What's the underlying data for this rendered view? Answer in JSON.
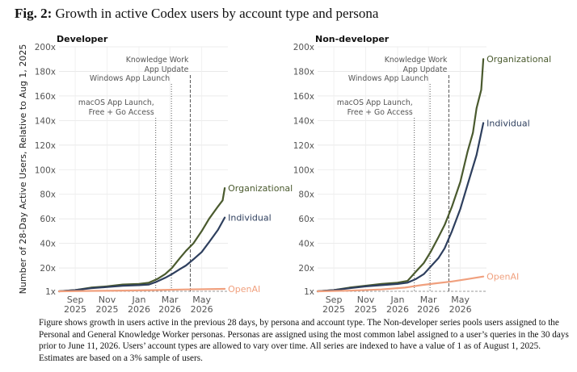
{
  "figure": {
    "label": "Fig. 2:",
    "title": "Growth in active Codex users by account type and persona",
    "caption": "Figure shows growth in users active in the previous 28 days, by persona and account type. The Non-developer series pools users assigned to the Personal and General Knowledge Worker personas. Personas are assigned using the most common label assigned to a user’s queries in the 30 days prior to June 11, 2026. Users’ account types are allowed to vary over time. All series are indexed to have a value of 1 as of August 1, 2025. Estimates are based on a 3% sample of users."
  },
  "chart_data": [
    {
      "type": "line",
      "title": "Developer",
      "ylabel": "Number of 28-Day Active Users, Relative to Aug 1, 2025",
      "ylim": [
        1,
        200
      ],
      "yticks": [
        1,
        20,
        40,
        60,
        80,
        100,
        120,
        140,
        160,
        180,
        200
      ],
      "ytick_labels": [
        "1x",
        "20x",
        "40x",
        "60x",
        "80x",
        "100x",
        "120x",
        "140x",
        "160x",
        "180x",
        "200x"
      ],
      "xlim": [
        "2025-08-01",
        "2026-06-20"
      ],
      "xticks": [
        "2025-09-01",
        "2025-11-01",
        "2026-01-01",
        "2026-03-01",
        "2026-05-01"
      ],
      "xtick_labels": [
        [
          "Sep",
          "2025"
        ],
        [
          "Nov",
          "2025"
        ],
        [
          "Jan",
          "2026"
        ],
        [
          "Mar",
          "2026"
        ],
        [
          "May",
          "2026"
        ]
      ],
      "grid": true,
      "events": [
        {
          "date": "2026-02-02",
          "label": [
            "macOS App Launch,",
            "Free + Go Access"
          ],
          "style": "dotted"
        },
        {
          "date": "2026-03-04",
          "label": [
            "Windows App Launch"
          ],
          "style": "dotted"
        },
        {
          "date": "2026-04-09",
          "label": [
            "Knowledge Work",
            "App Update"
          ],
          "style": "dashed"
        }
      ],
      "series": [
        {
          "name": "Organizational",
          "color": "#4a5a2e",
          "x": [
            "2025-08-01",
            "2025-09-01",
            "2025-10-01",
            "2025-11-01",
            "2025-12-01",
            "2026-01-01",
            "2026-01-20",
            "2026-02-05",
            "2026-02-20",
            "2026-03-05",
            "2026-03-20",
            "2026-04-01",
            "2026-04-15",
            "2026-05-01",
            "2026-05-15",
            "2026-06-01",
            "2026-06-10",
            "2026-06-14"
          ],
          "y": [
            1,
            2,
            4,
            5,
            6.5,
            7,
            8,
            11,
            15,
            20,
            28,
            34,
            40,
            50,
            60,
            70,
            75,
            85
          ]
        },
        {
          "name": "Individual",
          "color": "#2e3f5e",
          "x": [
            "2025-08-01",
            "2025-09-01",
            "2025-10-01",
            "2025-11-01",
            "2025-12-01",
            "2026-01-01",
            "2026-01-20",
            "2026-02-05",
            "2026-02-20",
            "2026-03-05",
            "2026-03-20",
            "2026-04-01",
            "2026-04-15",
            "2026-05-01",
            "2026-05-15",
            "2026-06-01",
            "2026-06-14"
          ],
          "y": [
            1,
            2,
            3.5,
            4.5,
            5.5,
            6,
            6.5,
            9,
            12,
            15,
            19,
            22,
            27,
            33,
            41,
            51,
            61
          ]
        },
        {
          "name": "OpenAI",
          "color": "#f0a07e",
          "x": [
            "2025-08-01",
            "2025-10-01",
            "2025-12-01",
            "2026-02-01",
            "2026-04-01",
            "2026-06-14"
          ],
          "y": [
            1,
            1.3,
            1.6,
            2,
            2.5,
            3
          ]
        }
      ]
    },
    {
      "type": "line",
      "title": "Non-developer",
      "ylim": [
        1,
        200
      ],
      "xlim": [
        "2025-08-01",
        "2026-06-20"
      ],
      "xticks": [
        "2025-09-01",
        "2025-11-01",
        "2026-01-01",
        "2026-03-01",
        "2026-05-01"
      ],
      "xtick_labels": [
        [
          "Sep",
          "2025"
        ],
        [
          "Nov",
          "2025"
        ],
        [
          "Jan",
          "2026"
        ],
        [
          "Mar",
          "2026"
        ],
        [
          "May",
          "2026"
        ]
      ],
      "grid": true,
      "events": [
        {
          "date": "2026-02-02",
          "label": [
            "macOS App Launch,",
            "Free + Go Access"
          ],
          "style": "dotted"
        },
        {
          "date": "2026-03-04",
          "label": [
            "Windows App Launch"
          ],
          "style": "dotted"
        },
        {
          "date": "2026-04-09",
          "label": [
            "Knowledge Work",
            "App Update"
          ],
          "style": "dashed"
        }
      ],
      "series": [
        {
          "name": "Organizational",
          "color": "#4a5a2e",
          "x": [
            "2025-08-01",
            "2025-09-01",
            "2025-10-01",
            "2025-11-01",
            "2025-12-01",
            "2026-01-01",
            "2026-01-20",
            "2026-02-05",
            "2026-02-20",
            "2026-03-05",
            "2026-03-20",
            "2026-04-01",
            "2026-04-15",
            "2026-05-01",
            "2026-05-15",
            "2026-05-25",
            "2026-06-01",
            "2026-06-10",
            "2026-06-14"
          ],
          "y": [
            1,
            2,
            4,
            5.5,
            7,
            8,
            9.5,
            17,
            24,
            33,
            45,
            55,
            70,
            90,
            115,
            130,
            150,
            165,
            190
          ]
        },
        {
          "name": "Individual",
          "color": "#2e3f5e",
          "x": [
            "2025-08-01",
            "2025-09-01",
            "2025-10-01",
            "2025-11-01",
            "2025-12-01",
            "2026-01-01",
            "2026-01-20",
            "2026-02-05",
            "2026-02-20",
            "2026-03-05",
            "2026-03-20",
            "2026-04-01",
            "2026-04-15",
            "2026-05-01",
            "2026-05-15",
            "2026-06-01",
            "2026-06-14"
          ],
          "y": [
            1,
            2,
            3.5,
            5,
            6,
            7,
            8,
            11,
            15,
            21,
            28,
            36,
            50,
            68,
            88,
            112,
            138
          ]
        },
        {
          "name": "OpenAI",
          "color": "#f0a07e",
          "x": [
            "2025-08-01",
            "2025-10-01",
            "2025-12-01",
            "2026-01-15",
            "2026-02-15",
            "2026-03-15",
            "2026-04-15",
            "2026-05-15",
            "2026-06-14"
          ],
          "y": [
            1,
            1.5,
            2.5,
            4,
            6,
            7.5,
            9,
            11,
            13
          ]
        }
      ]
    }
  ]
}
